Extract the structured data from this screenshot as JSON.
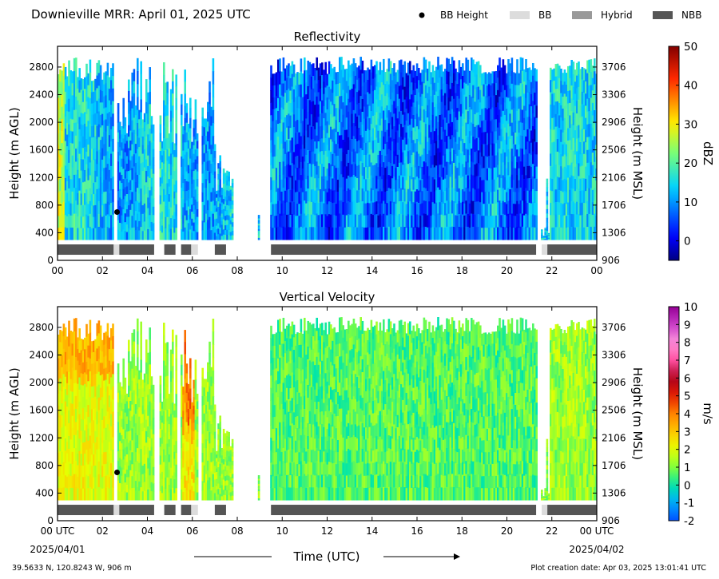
{
  "header": {
    "title": "Downieville MRR:  April 01, 2025 UTC",
    "legend": [
      {
        "label": "BB Height",
        "kind": "dot",
        "color": "#000000"
      },
      {
        "label": "BB",
        "kind": "box",
        "color": "#dcdcdc"
      },
      {
        "label": "Hybrid",
        "kind": "box",
        "color": "#999999"
      },
      {
        "label": "NBB",
        "kind": "box",
        "color": "#555555"
      }
    ]
  },
  "footer": {
    "location": "39.5633 N, 120.8243 W, 906 m",
    "creation": "Plot creation date: Apr 03, 2025 13:01:41 UTC",
    "xlabel": "Time (UTC)",
    "start_date": "2025/04/01",
    "end_date": "2025/04/02"
  },
  "chart_data": [
    {
      "type": "heatmap",
      "title": "Reflectivity",
      "ylabel": "Height (m AGL)",
      "ylabel_right": "Height (m MSL)",
      "xlim": [
        0,
        24
      ],
      "ylim": [
        0,
        3100
      ],
      "x_ticks": [
        "00",
        "02",
        "04",
        "06",
        "08",
        "10",
        "12",
        "14",
        "16",
        "18",
        "20",
        "22",
        "00"
      ],
      "y_ticks": [
        0,
        400,
        800,
        1200,
        1600,
        2000,
        2400,
        2800
      ],
      "y_ticks_right": [
        906,
        1306,
        1706,
        2106,
        2506,
        2906,
        3306,
        3706
      ],
      "colorbar": {
        "label": "dBZ",
        "min": -5,
        "max": 50,
        "ticks": [
          0,
          10,
          20,
          30,
          40,
          50
        ]
      },
      "bb_height": [
        {
          "time": 2.65,
          "height": 700
        }
      ],
      "bb_class": [
        {
          "start": 0.0,
          "end": 2.5,
          "class": "NBB"
        },
        {
          "start": 2.5,
          "end": 2.75,
          "class": "BB"
        },
        {
          "start": 2.75,
          "end": 4.3,
          "class": "NBB"
        },
        {
          "start": 4.75,
          "end": 5.25,
          "class": "NBB"
        },
        {
          "start": 5.5,
          "end": 5.95,
          "class": "NBB"
        },
        {
          "start": 5.95,
          "end": 6.25,
          "class": "BB"
        },
        {
          "start": 7.0,
          "end": 7.5,
          "class": "NBB"
        },
        {
          "start": 9.5,
          "end": 21.3,
          "class": "NBB"
        },
        {
          "start": 21.55,
          "end": 21.8,
          "class": "BB"
        },
        {
          "start": 21.8,
          "end": 24.0,
          "class": "NBB"
        }
      ]
    },
    {
      "type": "heatmap",
      "title": "Vertical Velocity",
      "ylabel": "Height (m AGL)",
      "ylabel_right": "Height (m MSL)",
      "xlim": [
        0,
        24
      ],
      "ylim": [
        0,
        3100
      ],
      "x_ticks": [
        "00 UTC",
        "02",
        "04",
        "06",
        "08",
        "10",
        "12",
        "14",
        "16",
        "18",
        "20",
        "22",
        "00 UTC"
      ],
      "y_ticks": [
        0,
        400,
        800,
        1200,
        1600,
        2000,
        2400,
        2800
      ],
      "y_ticks_right": [
        906,
        1306,
        1706,
        2106,
        2506,
        2906,
        3306,
        3706
      ],
      "colorbar": {
        "label": "m/s",
        "min": -2,
        "max": 10,
        "ticks": [
          -2,
          -1,
          0,
          1,
          2,
          3,
          4,
          5,
          6,
          7,
          8,
          9,
          10
        ]
      },
      "bb_height": [
        {
          "time": 2.65,
          "height": 700
        }
      ],
      "bb_class": [
        {
          "start": 0.0,
          "end": 2.5,
          "class": "NBB"
        },
        {
          "start": 2.5,
          "end": 2.75,
          "class": "BB"
        },
        {
          "start": 2.75,
          "end": 4.3,
          "class": "NBB"
        },
        {
          "start": 4.75,
          "end": 5.25,
          "class": "NBB"
        },
        {
          "start": 5.5,
          "end": 5.95,
          "class": "NBB"
        },
        {
          "start": 5.95,
          "end": 6.25,
          "class": "BB"
        },
        {
          "start": 7.0,
          "end": 7.5,
          "class": "NBB"
        },
        {
          "start": 9.5,
          "end": 21.3,
          "class": "NBB"
        },
        {
          "start": 21.55,
          "end": 21.8,
          "class": "BB"
        },
        {
          "start": 21.8,
          "end": 24.0,
          "class": "NBB"
        }
      ]
    }
  ]
}
